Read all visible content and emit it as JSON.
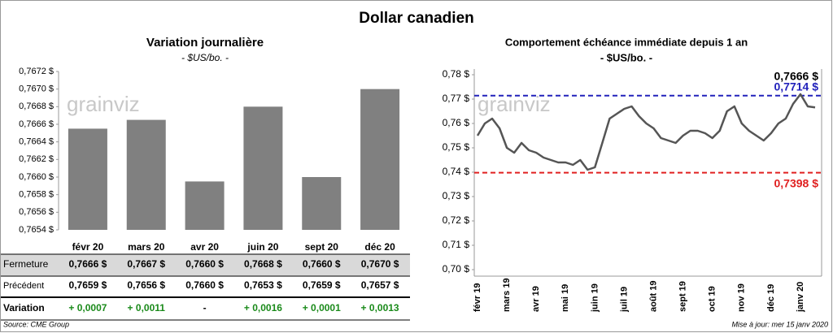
{
  "title": "Dollar canadien",
  "watermark": "grainviz",
  "chart_data": [
    {
      "type": "bar",
      "title": "Variation  journalière",
      "subtitle": "- $US/bo. -",
      "categories": [
        "févr 20",
        "mars 20",
        "avr 20",
        "juin 20",
        "sept 20",
        "déc 20"
      ],
      "values": [
        0.76655,
        0.76665,
        0.76595,
        0.7668,
        0.766,
        0.767
      ],
      "color": "#808080",
      "ylim": [
        0.7654,
        0.7672
      ],
      "yticks": [
        {
          "value": 0.7654,
          "label": "0,7654 $"
        },
        {
          "value": 0.7656,
          "label": "0,7656 $"
        },
        {
          "value": 0.7658,
          "label": "0,7658 $"
        },
        {
          "value": 0.766,
          "label": "0,7660 $"
        },
        {
          "value": 0.7662,
          "label": "0,7662 $"
        },
        {
          "value": 0.7664,
          "label": "0,7664 $"
        },
        {
          "value": 0.7666,
          "label": "0,7666 $"
        },
        {
          "value": 0.7668,
          "label": "0,7668 $"
        },
        {
          "value": 0.767,
          "label": "0,7670 $"
        },
        {
          "value": 0.7672,
          "label": "0,7672 $"
        }
      ]
    },
    {
      "type": "line",
      "title": "Comportement échéance immédiate depuis 1 an",
      "subtitle": "- $US/bo. -",
      "categories": [
        "févr 19",
        null,
        null,
        null,
        "mars 19",
        null,
        null,
        null,
        "avr 19",
        null,
        null,
        null,
        "mai 19",
        null,
        null,
        null,
        "juin 19",
        null,
        null,
        null,
        "juil 19",
        null,
        null,
        null,
        "août 19",
        null,
        null,
        null,
        "sept 19",
        null,
        null,
        null,
        "oct 19",
        null,
        null,
        null,
        "nov 19",
        null,
        null,
        null,
        "déc 19",
        null,
        null,
        null,
        "janv 20",
        null,
        null
      ],
      "series": [
        {
          "color": "#555555",
          "values": [
            0.755,
            0.76,
            0.762,
            0.758,
            0.75,
            0.748,
            0.752,
            0.749,
            0.748,
            0.746,
            0.745,
            0.744,
            0.744,
            0.743,
            0.745,
            0.741,
            0.742,
            0.752,
            0.762,
            0.764,
            0.766,
            0.767,
            0.763,
            0.76,
            0.758,
            0.754,
            0.753,
            0.752,
            0.755,
            0.757,
            0.757,
            0.756,
            0.754,
            0.757,
            0.765,
            0.767,
            0.76,
            0.757,
            0.755,
            0.753,
            0.756,
            0.76,
            0.762,
            0.768,
            0.772,
            0.767,
            0.7666
          ]
        }
      ],
      "ylim": [
        0.7,
        0.785
      ],
      "yticks": [
        {
          "value": 0.7,
          "label": "0,70 $"
        },
        {
          "value": 0.71,
          "label": "0,71 $"
        },
        {
          "value": 0.72,
          "label": "0,72 $"
        },
        {
          "value": 0.73,
          "label": "0,73 $"
        },
        {
          "value": 0.74,
          "label": "0,74 $"
        },
        {
          "value": 0.75,
          "label": "0,75 $"
        },
        {
          "value": 0.76,
          "label": "0,76 $"
        },
        {
          "value": 0.77,
          "label": "0,77 $"
        },
        {
          "value": 0.78,
          "label": "0,78 $"
        }
      ],
      "hlines": [
        {
          "value": 0.7714,
          "label": "0,7714 $",
          "color": "#2222bb"
        },
        {
          "value": 0.7398,
          "label": "0,7398 $",
          "color": "#e02020"
        }
      ],
      "annotation": {
        "value": 0.7666,
        "label": "0,7666 $"
      }
    }
  ],
  "table": {
    "rows": [
      {
        "label": "Fermeture",
        "cells": [
          "0,7666 $",
          "0,7667 $",
          "0,7660 $",
          "0,7668 $",
          "0,7660 $",
          "0,7670 $"
        ]
      },
      {
        "label": "Précédent",
        "cells": [
          "0,7659 $",
          "0,7656 $",
          "0,7660 $",
          "0,7653 $",
          "0,7659 $",
          "0,7657 $"
        ]
      },
      {
        "label": "Variation",
        "cells": [
          "+ 0,0007",
          "+ 0,0011",
          "-",
          "+ 0,0016",
          "+ 0,0001",
          "+ 0,0013"
        ]
      }
    ]
  },
  "source": "Source: CME Group",
  "updated": "Mise à jour: mer 15 janv 2020"
}
